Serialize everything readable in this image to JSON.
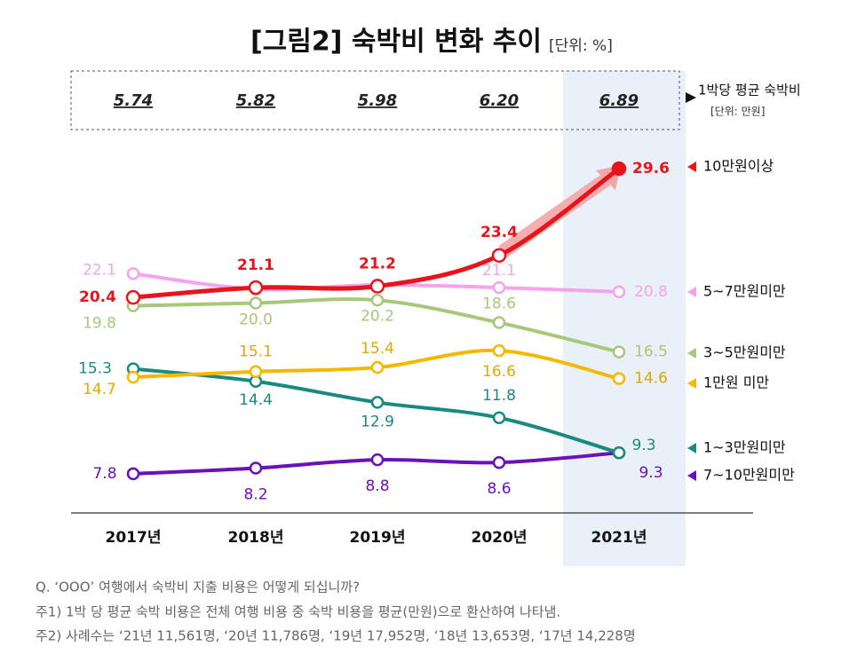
{
  "chart_data": {
    "type": "line",
    "title": "[그림2] 숙박비 변화 추이",
    "unit": "[단위: %]",
    "categories": [
      "2017년",
      "2018년",
      "2019년",
      "2020년",
      "2021년"
    ],
    "average_cost": {
      "name": "1박당 평균 숙박비",
      "unit": "[단위: 만원]",
      "values": [
        5.74,
        5.82,
        5.98,
        6.2,
        6.89
      ],
      "value_labels": [
        "5.74",
        "5.82",
        "5.98",
        "6.20",
        "6.89"
      ]
    },
    "ylim": [
      5,
      31
    ],
    "series": [
      {
        "name": "10만원이상",
        "color": "#e8141c",
        "values": [
          20.4,
          21.1,
          21.2,
          23.4,
          29.6
        ],
        "value_labels": [
          "20.4",
          "21.1",
          "21.2",
          "23.4",
          "29.6"
        ]
      },
      {
        "name": "5~7만원미만",
        "color": "#f4a3ec",
        "values": [
          22.1,
          21.0,
          21.3,
          21.1,
          20.8
        ],
        "value_labels": [
          "22.1",
          null,
          null,
          "21.1",
          "20.8"
        ]
      },
      {
        "name": "3~5만원미만",
        "color": "#a7c77a",
        "values": [
          19.8,
          20.0,
          20.2,
          18.6,
          16.5
        ],
        "value_labels": [
          "19.8",
          "20.0",
          "20.2",
          "18.6",
          "16.5"
        ]
      },
      {
        "name": "1만원 미만",
        "color": "#f5b800",
        "values": [
          14.7,
          15.1,
          15.4,
          16.6,
          14.6
        ],
        "value_labels": [
          "14.7",
          "15.1",
          "15.4",
          "16.6",
          "14.6"
        ]
      },
      {
        "name": "1~3만원미만",
        "color": "#1a8a80",
        "values": [
          15.3,
          14.4,
          12.9,
          11.8,
          9.3
        ],
        "value_labels": [
          "15.3",
          "14.4",
          "12.9",
          "11.8",
          "9.3"
        ]
      },
      {
        "name": "7~10만원미만",
        "color": "#6a12b8",
        "values": [
          7.8,
          8.2,
          8.8,
          8.6,
          9.3
        ],
        "value_labels": [
          "7.8",
          "8.2",
          "8.8",
          "8.6",
          "9.3"
        ]
      }
    ],
    "notes": [
      "Q. ‘OOO’ 여행에서 숙박비 지출 비용은 어떻게 되십니까?",
      "주1) 1박 당 평균 숙박 비용은 전체 여행 비용 중 숙박 비용을 평균(만원)으로 환산하여 나타냄.",
      "주2) 사례수는 ‘21년 11,561명, ‘20년 11,786명, ‘19년 17,952명, ‘18년 13,653명, ‘17년 14,228명"
    ]
  }
}
